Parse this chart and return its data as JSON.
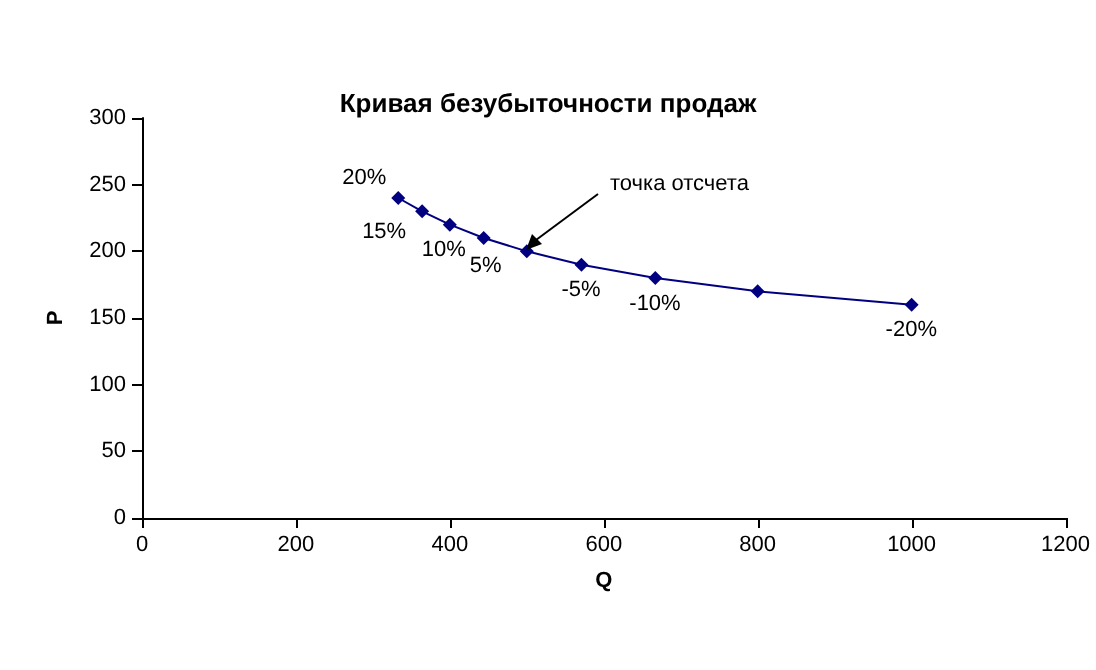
{
  "chart_data": {
    "type": "line",
    "title": "Кривая безубыточности продаж",
    "xlabel": "Q",
    "ylabel": "P",
    "x": [
      333,
      364,
      400,
      444,
      500,
      571,
      667,
      800,
      1000
    ],
    "series": [
      {
        "color": "#000080",
        "values": [
          240,
          230,
          220,
          210,
          200,
          190,
          180,
          170,
          160
        ]
      }
    ],
    "xlim": [
      0,
      1200
    ],
    "xticks": [
      0,
      200,
      400,
      600,
      800,
      1000,
      1200
    ],
    "ylim": [
      0,
      300
    ],
    "yticks": [
      0,
      50,
      100,
      150,
      200,
      250,
      300
    ],
    "grid": false,
    "marker": "diamond",
    "line_style": "solid",
    "annotations": [
      {
        "text": "20%",
        "x": 333,
        "y": 240
      },
      {
        "text": "15%",
        "x": 364,
        "y": 230
      },
      {
        "text": "10%",
        "x": 400,
        "y": 220
      },
      {
        "text": "5%",
        "x": 444,
        "y": 210
      },
      {
        "text": "-5%",
        "x": 571,
        "y": 190
      },
      {
        "text": "-10%",
        "x": 667,
        "y": 180
      },
      {
        "text": "-20%",
        "x": 1000,
        "y": 160
      },
      "точка отсчета"
    ]
  }
}
